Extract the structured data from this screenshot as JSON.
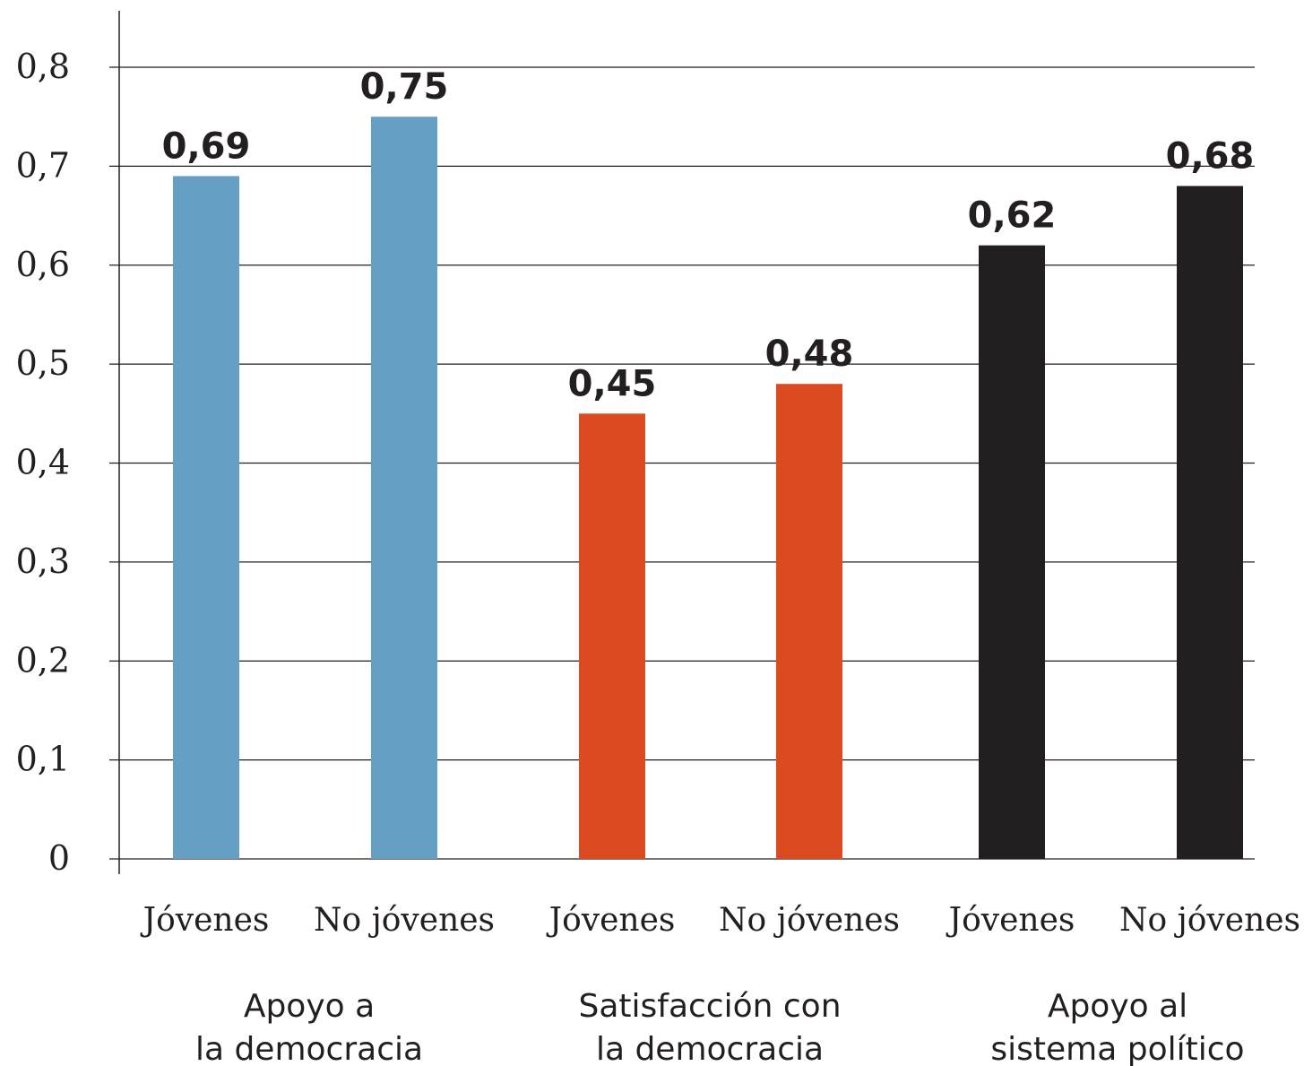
{
  "chart_data": {
    "type": "bar",
    "ylim": [
      0,
      0.8
    ],
    "y_ticks": [
      "0",
      "0,1",
      "0,2",
      "0,3",
      "0,4",
      "0,5",
      "0,6",
      "0,7",
      "0,8"
    ],
    "grid": true,
    "groups": [
      {
        "label_lines": [
          "Apoyo a",
          "la democracia"
        ],
        "color": "#659fc3",
        "bars": [
          {
            "category": "Jóvenes",
            "value": 0.69,
            "value_label": "0,69"
          },
          {
            "category": "No jóvenes",
            "value": 0.75,
            "value_label": "0,75"
          }
        ]
      },
      {
        "label_lines": [
          "Satisfacción con",
          "la democracia"
        ],
        "color": "#dc4a22",
        "bars": [
          {
            "category": "Jóvenes",
            "value": 0.45,
            "value_label": "0,45"
          },
          {
            "category": "No jóvenes",
            "value": 0.48,
            "value_label": "0,48"
          }
        ]
      },
      {
        "label_lines": [
          "Apoyo al",
          "sistema político"
        ],
        "color": "#231f20",
        "bars": [
          {
            "category": "Jóvenes",
            "value": 0.62,
            "value_label": "0,62"
          },
          {
            "category": "No jóvenes",
            "value": 0.68,
            "value_label": "0,68"
          }
        ]
      }
    ]
  }
}
